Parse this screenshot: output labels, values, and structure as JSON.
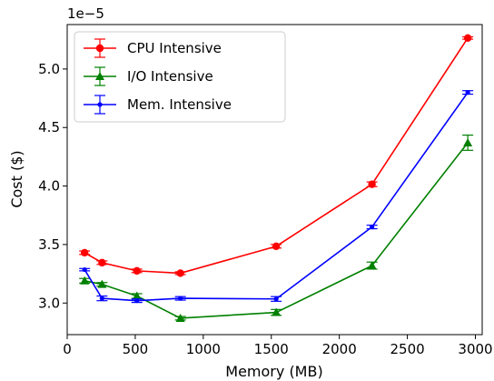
{
  "chart_data": {
    "type": "line",
    "title": "",
    "xlabel": "Memory (MB)",
    "ylabel": "Cost ($)",
    "y_scale_label": "1e−5",
    "xlim": [
      0,
      3050
    ],
    "ylim": [
      2.73,
      5.38
    ],
    "x_ticks": [
      0,
      500,
      1000,
      1500,
      2000,
      2500,
      3000
    ],
    "x_tick_labels": [
      "0",
      "500",
      "1000",
      "1500",
      "2000",
      "2500",
      "3000"
    ],
    "y_ticks": [
      3.0,
      3.5,
      4.0,
      4.5,
      5.0
    ],
    "y_tick_labels": [
      "3.0",
      "3.5",
      "4.0",
      "4.5",
      "5.0"
    ],
    "grid": false,
    "legend_placement": "top-left",
    "series": [
      {
        "name": "CPU Intensive",
        "color": "#ff0000",
        "marker": "circle",
        "x": [
          128,
          256,
          512,
          832,
          1536,
          2240,
          2944
        ],
        "y": [
          3.43,
          3.345,
          3.275,
          3.255,
          3.485,
          4.015,
          5.265
        ],
        "err": [
          0.015,
          0.015,
          0.015,
          0.012,
          0.015,
          0.02,
          0.01
        ]
      },
      {
        "name": "I/O Intensive",
        "color": "#008000",
        "marker": "triangle",
        "x": [
          128,
          256,
          512,
          832,
          1536,
          2240,
          2944
        ],
        "y": [
          3.19,
          3.16,
          3.06,
          2.87,
          2.92,
          3.32,
          4.37
        ],
        "err": [
          0.02,
          0.015,
          0.02,
          0.015,
          0.025,
          0.03,
          0.065
        ]
      },
      {
        "name": "Mem. Intensive",
        "color": "#0000ff",
        "marker": "point",
        "x": [
          128,
          256,
          512,
          832,
          1536,
          2240,
          2944
        ],
        "y": [
          3.285,
          3.04,
          3.02,
          3.04,
          3.035,
          3.65,
          4.8
        ],
        "err": [
          0.01,
          0.02,
          0.015,
          0.015,
          0.02,
          0.015,
          0.015
        ]
      }
    ]
  }
}
